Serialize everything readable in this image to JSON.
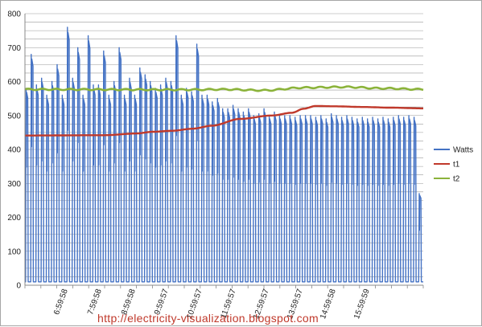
{
  "chart_data": {
    "type": "line",
    "title": "",
    "xlabel": "",
    "ylabel": "",
    "ylim": [
      0,
      800
    ],
    "yticks": [
      0,
      100,
      200,
      300,
      400,
      500,
      600,
      700,
      800
    ],
    "grid": true,
    "legend_position": "right",
    "x_tick_labels": [
      "6:59:58",
      "7:59:58",
      "8:59:58",
      "9:59:57",
      "10:59:57",
      "11:59:57",
      "12:59:57",
      "13:59:57",
      "14:59:58",
      "15:59:59"
    ],
    "series": [
      {
        "name": "Watts",
        "color": "#4472c4",
        "pattern": "cyclic",
        "cycles": 77,
        "baseline": 10,
        "peaks": [
          580,
          680,
          590,
          610,
          560,
          600,
          650,
          560,
          760,
          610,
          700,
          560,
          735,
          590,
          590,
          690,
          560,
          600,
          700,
          560,
          610,
          560,
          640,
          620,
          600,
          580,
          590,
          610,
          600,
          735,
          560,
          580,
          570,
          710,
          560,
          560,
          540,
          550,
          520,
          520,
          530,
          520,
          510,
          520,
          500,
          505,
          520,
          500,
          510,
          500,
          500,
          500,
          495,
          500,
          500,
          500,
          495,
          500,
          490,
          505,
          500,
          495,
          500,
          495,
          490,
          495,
          490,
          495,
          490,
          495,
          490,
          495,
          500,
          495,
          500,
          495,
          270
        ]
      },
      {
        "name": "t1",
        "color": "#c0392b",
        "pattern": "smooth",
        "points": [
          [
            0,
            441
          ],
          [
            0.2,
            442
          ],
          [
            0.28,
            447
          ],
          [
            0.32,
            452
          ],
          [
            0.37,
            455
          ],
          [
            0.42,
            461
          ],
          [
            0.47,
            470
          ],
          [
            0.54,
            490
          ],
          [
            0.62,
            500
          ],
          [
            0.67,
            508
          ],
          [
            0.7,
            520
          ],
          [
            0.73,
            528
          ],
          [
            0.78,
            527
          ],
          [
            0.85,
            525
          ],
          [
            0.92,
            523
          ],
          [
            1,
            521
          ]
        ]
      },
      {
        "name": "t2",
        "color": "#8bb33a",
        "pattern": "wavy",
        "points": [
          [
            0,
            577
          ],
          [
            0.4,
            576
          ],
          [
            0.5,
            577
          ],
          [
            0.6,
            574
          ],
          [
            0.7,
            582
          ],
          [
            0.8,
            584
          ],
          [
            0.9,
            580
          ],
          [
            1,
            577
          ]
        ]
      }
    ]
  },
  "watermark": {
    "text": "http://electricity-visualization.blogspot.com"
  }
}
